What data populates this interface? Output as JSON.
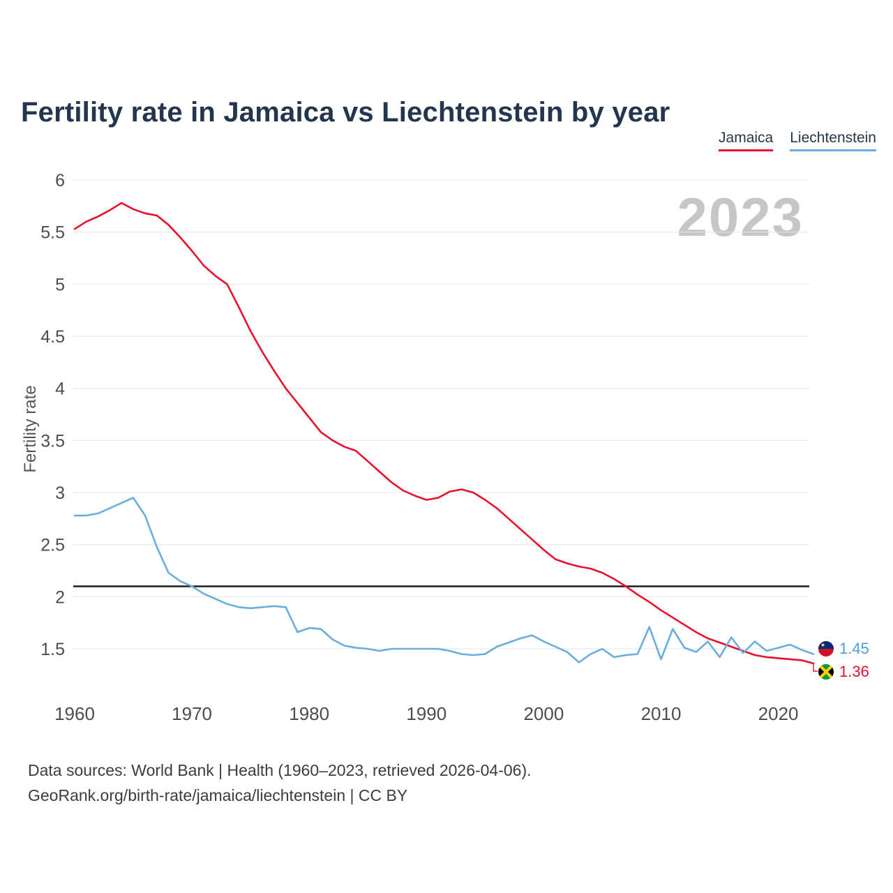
{
  "title": "Fertility rate in Jamaica vs Liechtenstein by year",
  "watermark_year": "2023",
  "legend": {
    "items": [
      {
        "label": "Jamaica",
        "color": "#e8112d"
      },
      {
        "label": "Liechtenstein",
        "color": "#6aaede"
      }
    ]
  },
  "ylabel": "Fertility rate",
  "end_labels": [
    {
      "series": "Liechtenstein",
      "value": "1.45",
      "color": "#4a9fd8",
      "icon": "liechtenstein-flag-icon"
    },
    {
      "series": "Jamaica",
      "value": "1.36",
      "color": "#e8112d",
      "icon": "jamaica-flag-icon"
    }
  ],
  "footer": {
    "line1": "Data sources: World Bank | Health (1960–2023, retrieved 2026-04-06).",
    "line2": "GeoRank.org/birth-rate/jamaica/liechtenstein | CC BY"
  },
  "chart_data": {
    "type": "line",
    "x_start": 1960,
    "x_end": 2023,
    "xlabel": "",
    "ylabel": "Fertility rate",
    "ylim": [
      1.25,
      6.15
    ],
    "grid": true,
    "legend_position": "top-right",
    "xticks": [
      1960,
      1970,
      1980,
      1990,
      2000,
      2010,
      2020
    ],
    "yticks": [
      1.5,
      2,
      2.5,
      3,
      3.5,
      4,
      4.5,
      5,
      5.5,
      6
    ],
    "reference_line": 2.1,
    "series": [
      {
        "name": "Jamaica",
        "color": "#e8112d",
        "final_value": 1.36,
        "values": [
          5.53,
          5.6,
          5.65,
          5.71,
          5.78,
          5.72,
          5.68,
          5.66,
          5.57,
          5.45,
          5.32,
          5.18,
          5.08,
          5.0,
          4.78,
          4.55,
          4.35,
          4.17,
          4.0,
          3.86,
          3.72,
          3.58,
          3.5,
          3.44,
          3.4,
          3.3,
          3.2,
          3.1,
          3.02,
          2.97,
          2.93,
          2.95,
          3.01,
          3.03,
          3.0,
          2.93,
          2.85,
          2.75,
          2.65,
          2.55,
          2.45,
          2.36,
          2.32,
          2.29,
          2.27,
          2.23,
          2.17,
          2.1,
          2.02,
          1.95,
          1.87,
          1.8,
          1.73,
          1.66,
          1.6,
          1.56,
          1.52,
          1.48,
          1.44,
          1.42,
          1.41,
          1.4,
          1.39,
          1.36
        ]
      },
      {
        "name": "Liechtenstein",
        "color": "#6aaede",
        "final_value": 1.45,
        "values": [
          2.78,
          2.78,
          2.8,
          2.85,
          2.9,
          2.95,
          2.78,
          2.48,
          2.23,
          2.15,
          2.1,
          2.03,
          1.98,
          1.93,
          1.9,
          1.89,
          1.9,
          1.91,
          1.9,
          1.66,
          1.7,
          1.69,
          1.59,
          1.53,
          1.51,
          1.5,
          1.48,
          1.5,
          1.5,
          1.5,
          1.5,
          1.5,
          1.48,
          1.45,
          1.44,
          1.45,
          1.52,
          1.56,
          1.6,
          1.63,
          1.57,
          1.52,
          1.47,
          1.37,
          1.45,
          1.5,
          1.42,
          1.44,
          1.45,
          1.71,
          1.4,
          1.69,
          1.51,
          1.47,
          1.57,
          1.42,
          1.61,
          1.46,
          1.57,
          1.48,
          1.51,
          1.54,
          1.49,
          1.45
        ]
      }
    ]
  }
}
